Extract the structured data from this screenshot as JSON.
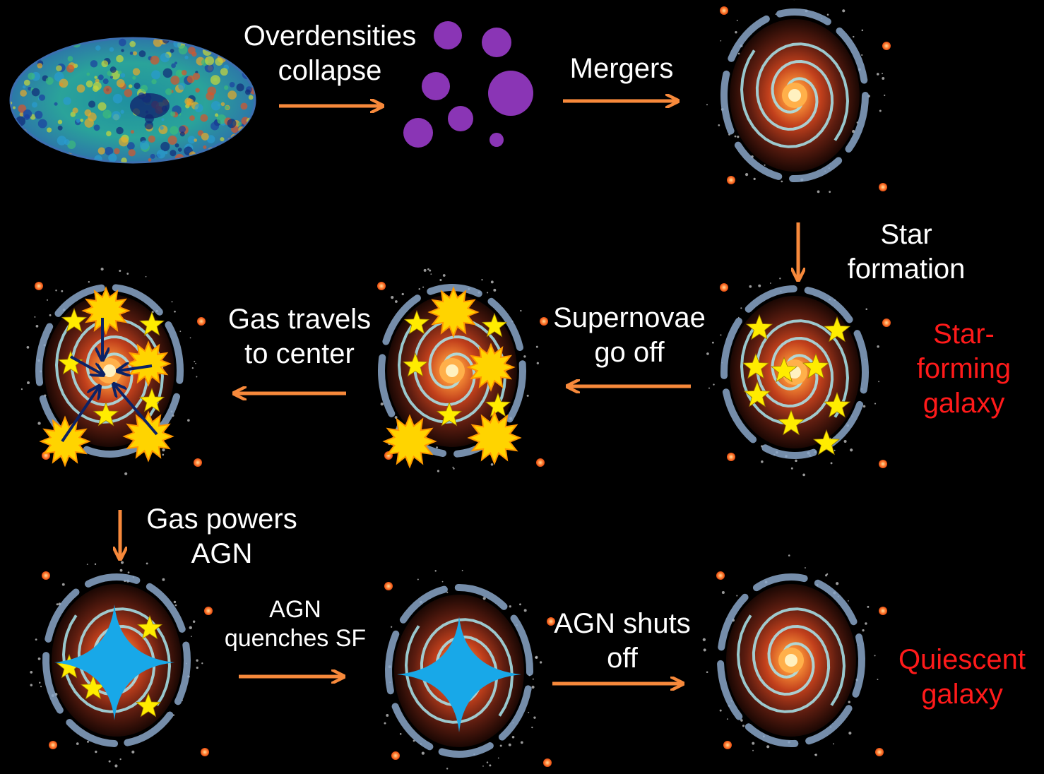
{
  "labels": {
    "overdensities": [
      "Overdensities",
      "collapse"
    ],
    "mergers": [
      "Mergers"
    ],
    "star_formation": [
      "Star",
      "formation"
    ],
    "star_forming_galaxy": [
      "Star-",
      "forming",
      "galaxy"
    ],
    "supernovae": [
      "Supernovae",
      "go off"
    ],
    "gas_travels": [
      "Gas travels",
      "to center"
    ],
    "gas_powers": [
      "Gas powers",
      "AGN"
    ],
    "agn_quenches": [
      "AGN",
      "quenches SF"
    ],
    "agn_shuts": [
      "AGN shuts",
      "off"
    ],
    "quiescent_galaxy": [
      "Quiescent",
      "galaxy"
    ]
  },
  "colors": {
    "background": "#000000",
    "arrow": "#f7893b",
    "halo": "#8a35b5",
    "label": "#ffffff",
    "highlight_label": "#ff1a1a",
    "star": "#ffec00",
    "supernova": "#ffd400",
    "agn_flare": "#18a8e8",
    "inflow_arrow": "#0c2266",
    "galaxy_core": "#ffb04a",
    "galaxy_arms": "#a8e8f0"
  },
  "nodes": [
    {
      "id": "cmb-map",
      "icon": "cmb-sky-map-icon"
    },
    {
      "id": "dark-matter-halos",
      "icon": "halo-cluster-icon"
    },
    {
      "id": "galaxy-merged",
      "icon": "spiral-galaxy-icon"
    },
    {
      "id": "galaxy-star-forming",
      "icon": "spiral-galaxy-icon"
    },
    {
      "id": "galaxy-supernovae",
      "icon": "spiral-galaxy-icon"
    },
    {
      "id": "galaxy-gas-inflow",
      "icon": "spiral-galaxy-icon"
    },
    {
      "id": "galaxy-agn-active",
      "icon": "spiral-galaxy-icon"
    },
    {
      "id": "galaxy-agn-quenching",
      "icon": "spiral-galaxy-icon"
    },
    {
      "id": "galaxy-quiescent",
      "icon": "spiral-galaxy-icon"
    }
  ]
}
